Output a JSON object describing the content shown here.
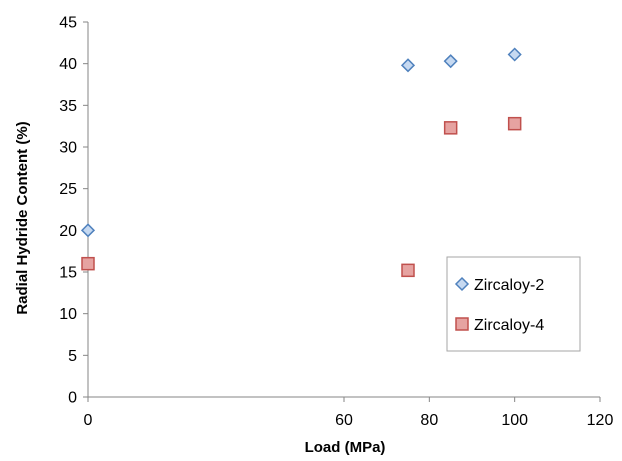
{
  "chart_data": {
    "type": "scatter",
    "title": "",
    "xlabel": "Load (MPa)",
    "ylabel": "Radial Hydride Content (%)",
    "xlim": [
      0,
      120
    ],
    "ylim": [
      0,
      45
    ],
    "x_ticks": [
      0,
      60,
      80,
      100,
      120
    ],
    "y_ticks": [
      0,
      5,
      10,
      15,
      20,
      25,
      30,
      35,
      40,
      45
    ],
    "grid": false,
    "legend_position": "right",
    "series": [
      {
        "name": "Zircaloy-2",
        "marker": "diamond",
        "color": "#4f81bd",
        "fill": "#c6d9f1",
        "points": [
          {
            "x": 0,
            "y": 20
          },
          {
            "x": 75,
            "y": 39.8
          },
          {
            "x": 85,
            "y": 40.3
          },
          {
            "x": 100,
            "y": 41.1
          }
        ]
      },
      {
        "name": "Zircaloy-4",
        "marker": "square",
        "color": "#c0504d",
        "fill": "#e6a3a1",
        "points": [
          {
            "x": 0,
            "y": 16
          },
          {
            "x": 75,
            "y": 15.2
          },
          {
            "x": 85,
            "y": 32.3
          },
          {
            "x": 100,
            "y": 32.8
          }
        ]
      }
    ]
  }
}
